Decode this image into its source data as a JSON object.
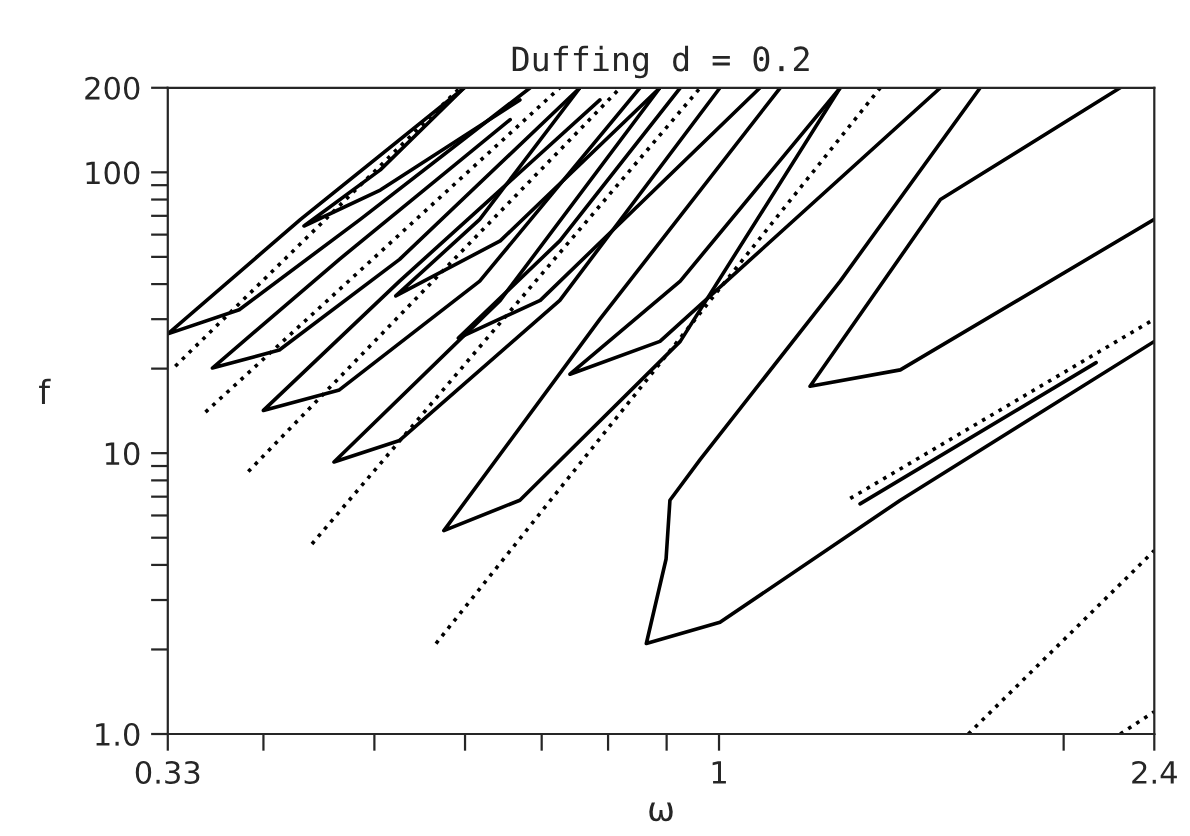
{
  "chart_data": {
    "type": "line",
    "title": "Duffing d = 0.2",
    "xlabel": "ω",
    "ylabel": "f",
    "log": "xy",
    "grid": false,
    "legend": false,
    "marker": "none",
    "xlim": [
      0.33,
      2.4
    ],
    "ylim": [
      1,
      200
    ],
    "xticks": [
      0.33,
      {
        "value": 0.4,
        "label": null
      },
      {
        "value": 0.5,
        "label": null
      },
      {
        "value": 0.6,
        "label": null
      },
      {
        "value": 0.7,
        "label": null
      },
      {
        "value": 0.8,
        "label": null
      },
      {
        "value": 0.9,
        "label": null
      },
      1,
      {
        "value": 2,
        "label": null
      },
      2.4
    ],
    "yticks": [
      {
        "value": 1,
        "label": "1.0"
      },
      {
        "value": 2,
        "label": null
      },
      {
        "value": 3,
        "label": null
      },
      {
        "value": 4,
        "label": null
      },
      {
        "value": 5,
        "label": null
      },
      {
        "value": 6,
        "label": null
      },
      {
        "value": 7,
        "label": null
      },
      {
        "value": 8,
        "label": null
      },
      {
        "value": 9,
        "label": null
      },
      10,
      {
        "value": 20,
        "label": null
      },
      {
        "value": 30,
        "label": null
      },
      {
        "value": 40,
        "label": null
      },
      {
        "value": 50,
        "label": null
      },
      {
        "value": 60,
        "label": null
      },
      {
        "value": 70,
        "label": null
      },
      {
        "value": 80,
        "label": null
      },
      {
        "value": 90,
        "label": null
      },
      100,
      200
    ],
    "series": [
      {
        "color": "#000000",
        "line_style": "solid",
        "x": [
          0.599,
          0.431,
          0.33,
          0.381,
          0.486,
          0.684
        ],
        "values": [
          200,
          68,
          26.6,
          32.4,
          68,
          200
        ]
      },
      {
        "color": "#000000",
        "line_style": "solid",
        "x": [
          0.657,
          0.466,
          0.361,
          0.413,
          0.526,
          0.756
        ],
        "values": [
          154,
          49,
          20.1,
          23.3,
          49,
          200
        ]
      },
      {
        "color": "#000000",
        "line_style": "solid",
        "x": [
          0.787,
          0.526,
          0.4,
          0.466,
          0.618,
          0.853
        ],
        "values": [
          181,
          41,
          14.2,
          16.8,
          41,
          200
        ]
      },
      {
        "color": "#000000",
        "line_style": "solid",
        "x": [
          0.888,
          0.644,
          0.461,
          0.526,
          0.726,
          1.002
        ],
        "values": [
          200,
          35,
          9.3,
          11.1,
          35,
          200
        ]
      },
      {
        "color": "#000000",
        "line_style": "solid",
        "x": [
          1.131,
          0.787,
          0.575,
          0.67,
          0.925,
          1.276
        ],
        "values": [
          200,
          30,
          5.3,
          6.8,
          25,
          200
        ]
      },
      {
        "color": "#000000",
        "line_style": "solid",
        "x": [
          1.691,
          1.276,
          0.963,
          0.906,
          0.899,
          0.864,
          1.002,
          1.44,
          2.4
        ],
        "values": [
          200,
          41,
          9.5,
          6.8,
          4.2,
          2.1,
          2.5,
          6.8,
          25
        ]
      },
      {
        "color": "#000000",
        "line_style": "solid",
        "x": [
          2.241,
          1.561,
          1.201,
          1.44,
          2.4
        ],
        "values": [
          200,
          80,
          17.3,
          19.8,
          68
        ]
      },
      {
        "color": "#000000",
        "line_style": "solid",
        "x": [
          1.276,
          0.925,
          0.741,
          0.888,
          1.561
        ],
        "values": [
          200,
          41,
          19.1,
          25,
          200
        ]
      },
      {
        "color": "#000000",
        "line_style": "solid",
        "x": [
          0.925,
          0.726,
          0.592,
          0.698,
          1.086
        ],
        "values": [
          200,
          57,
          25.7,
          35,
          200
        ]
      },
      {
        "color": "#000000",
        "line_style": "solid",
        "x": [
          0.756,
          0.618,
          0.522,
          0.644,
          0.888
        ],
        "values": [
          200,
          68,
          36.3,
          57,
          200
        ]
      },
      {
        "color": "#000000",
        "line_style": "solid",
        "x": [
          0.599,
          0.506,
          0.434,
          0.506,
          0.67
        ],
        "values": [
          200,
          102,
          64.4,
          86.5,
          181
        ]
      },
      {
        "color": "#000000",
        "line_style": "solid",
        "x": [
          1.328,
          2.135
        ],
        "values": [
          6.6,
          21
        ]
      },
      {
        "color": "#000000",
        "line_style": "dotted",
        "x": [
          0.335,
          0.594
        ],
        "values": [
          20.4,
          200
        ]
      },
      {
        "color": "#000000",
        "line_style": "dotted",
        "x": [
          0.356,
          0.726
        ],
        "values": [
          14.0,
          200
        ]
      },
      {
        "color": "#000000",
        "line_style": "dotted",
        "x": [
          0.388,
          0.82
        ],
        "values": [
          8.6,
          200
        ]
      },
      {
        "color": "#000000",
        "line_style": "dotted",
        "x": [
          0.441,
          0.963
        ],
        "values": [
          4.75,
          200
        ]
      },
      {
        "color": "#000000",
        "line_style": "dotted",
        "x": [
          0.566,
          1.383
        ],
        "values": [
          2.1,
          200
        ]
      },
      {
        "color": "#000000",
        "line_style": "dotted",
        "x": [
          1.302,
          2.4
        ],
        "values": [
          6.9,
          30
        ]
      },
      {
        "color": "#000000",
        "line_style": "dotted",
        "x": [
          1.651,
          2.4
        ],
        "values": [
          1.0,
          4.5
        ]
      },
      {
        "color": "#000000",
        "line_style": "dotted",
        "x": [
          2.241,
          2.4
        ],
        "values": [
          1.0,
          1.2
        ]
      }
    ]
  }
}
